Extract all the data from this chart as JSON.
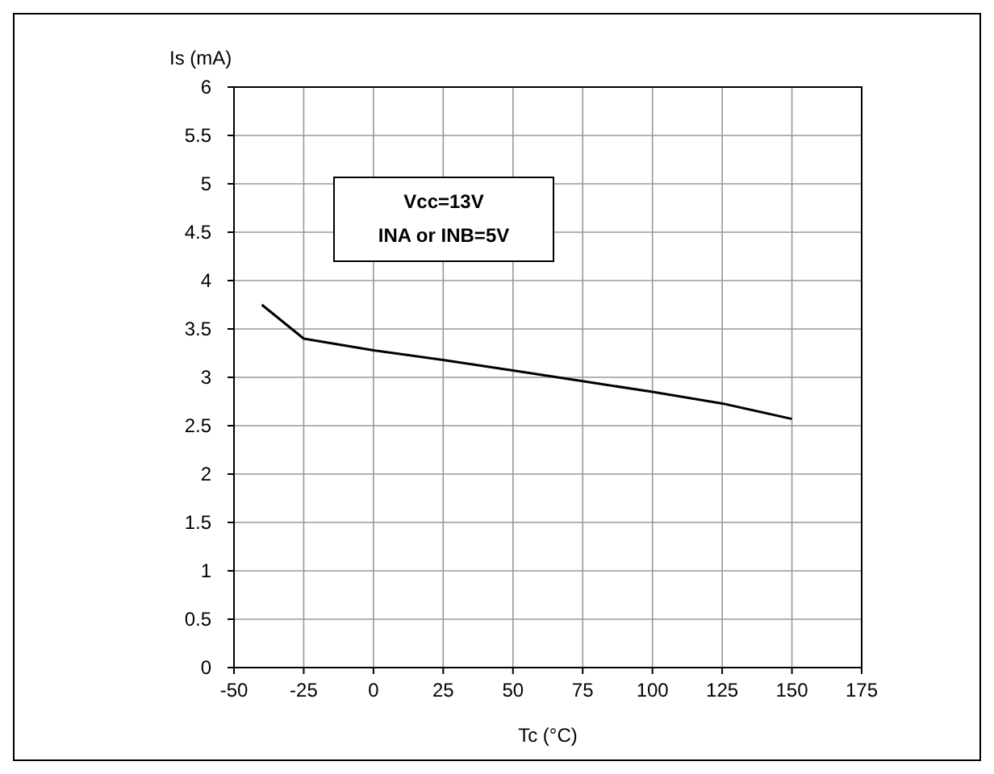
{
  "chart_data": {
    "type": "line",
    "xlabel": "Tc (°C)",
    "ylabel": "Is (mA)",
    "annotations": [
      "Vcc=13V",
      "INA or INB=5V"
    ],
    "series": [
      {
        "color": "#000000",
        "x": [
          -40,
          -25,
          0,
          25,
          50,
          75,
          100,
          125,
          150
        ],
        "values": [
          3.75,
          3.4,
          3.28,
          3.18,
          3.07,
          2.96,
          2.85,
          2.73,
          2.57
        ]
      }
    ],
    "xlim": [
      -50,
      175
    ],
    "xticks": [
      -50,
      -25,
      0,
      25,
      50,
      75,
      100,
      125,
      150,
      175
    ],
    "ylim": [
      0,
      6
    ],
    "yticks": [
      0,
      0.5,
      1,
      1.5,
      2,
      2.5,
      3,
      3.5,
      4,
      4.5,
      5,
      5.5,
      6
    ],
    "grid": true,
    "marker": "none",
    "line_style": "solid"
  }
}
